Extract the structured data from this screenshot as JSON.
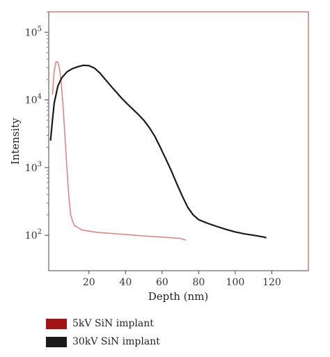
{
  "chart_data": {
    "type": "line",
    "xlabel": "Depth (nm)",
    "ylabel": "Intensity",
    "xlim": [
      -2,
      140
    ],
    "ylim": [
      30,
      200000
    ],
    "y_scale": "log",
    "grid": false,
    "legend_placement": "bottom-left, below plot",
    "x_ticks": [
      {
        "value": 20,
        "label": "20"
      },
      {
        "value": 40,
        "label": "40"
      },
      {
        "value": 60,
        "label": "60"
      },
      {
        "value": 80,
        "label": "80"
      },
      {
        "value": 100,
        "label": "100"
      },
      {
        "value": 120,
        "label": "120"
      }
    ],
    "y_ticks": [
      {
        "value": 100,
        "base": "10",
        "exp": "2"
      },
      {
        "value": 1000,
        "base": "10",
        "exp": "3"
      },
      {
        "value": 10000,
        "base": "10",
        "exp": "4"
      },
      {
        "value": 100000,
        "base": "10",
        "exp": "5"
      }
    ],
    "series": [
      {
        "name": "5kV SiN implant",
        "legend_color": "#a31515",
        "line_color": "#e08585",
        "x": [
          0,
          1,
          2,
          3,
          4,
          5,
          6,
          7,
          8,
          9,
          10,
          11,
          12,
          14,
          16,
          20,
          25,
          30,
          35,
          40,
          45,
          50,
          55,
          60,
          65,
          70,
          73
        ],
        "y": [
          12000,
          27000,
          37000,
          36000,
          28000,
          16000,
          7000,
          2600,
          900,
          380,
          200,
          165,
          140,
          130,
          120,
          115,
          110,
          108,
          105,
          103,
          100,
          98,
          96,
          94,
          92,
          90,
          85
        ]
      },
      {
        "name": "30kV SiN implant",
        "legend_color": "#1a1a1a",
        "line_color": "#1a1a1a",
        "x": [
          -1,
          0,
          1,
          3,
          5,
          8,
          11,
          14,
          17,
          20,
          23,
          26,
          29,
          32,
          35,
          38,
          41,
          44,
          47,
          50,
          53,
          56,
          59,
          62,
          65,
          68,
          71,
          74,
          77,
          80,
          85,
          90,
          95,
          100,
          105,
          110,
          115,
          117
        ],
        "y": [
          2500,
          5000,
          9000,
          16000,
          21000,
          26000,
          29000,
          31000,
          32500,
          32000,
          29500,
          25000,
          20000,
          16000,
          13000,
          10500,
          8700,
          7300,
          6100,
          5000,
          3900,
          2900,
          2000,
          1350,
          900,
          580,
          380,
          260,
          200,
          170,
          150,
          135,
          122,
          112,
          105,
          100,
          95,
          92
        ]
      }
    ]
  }
}
